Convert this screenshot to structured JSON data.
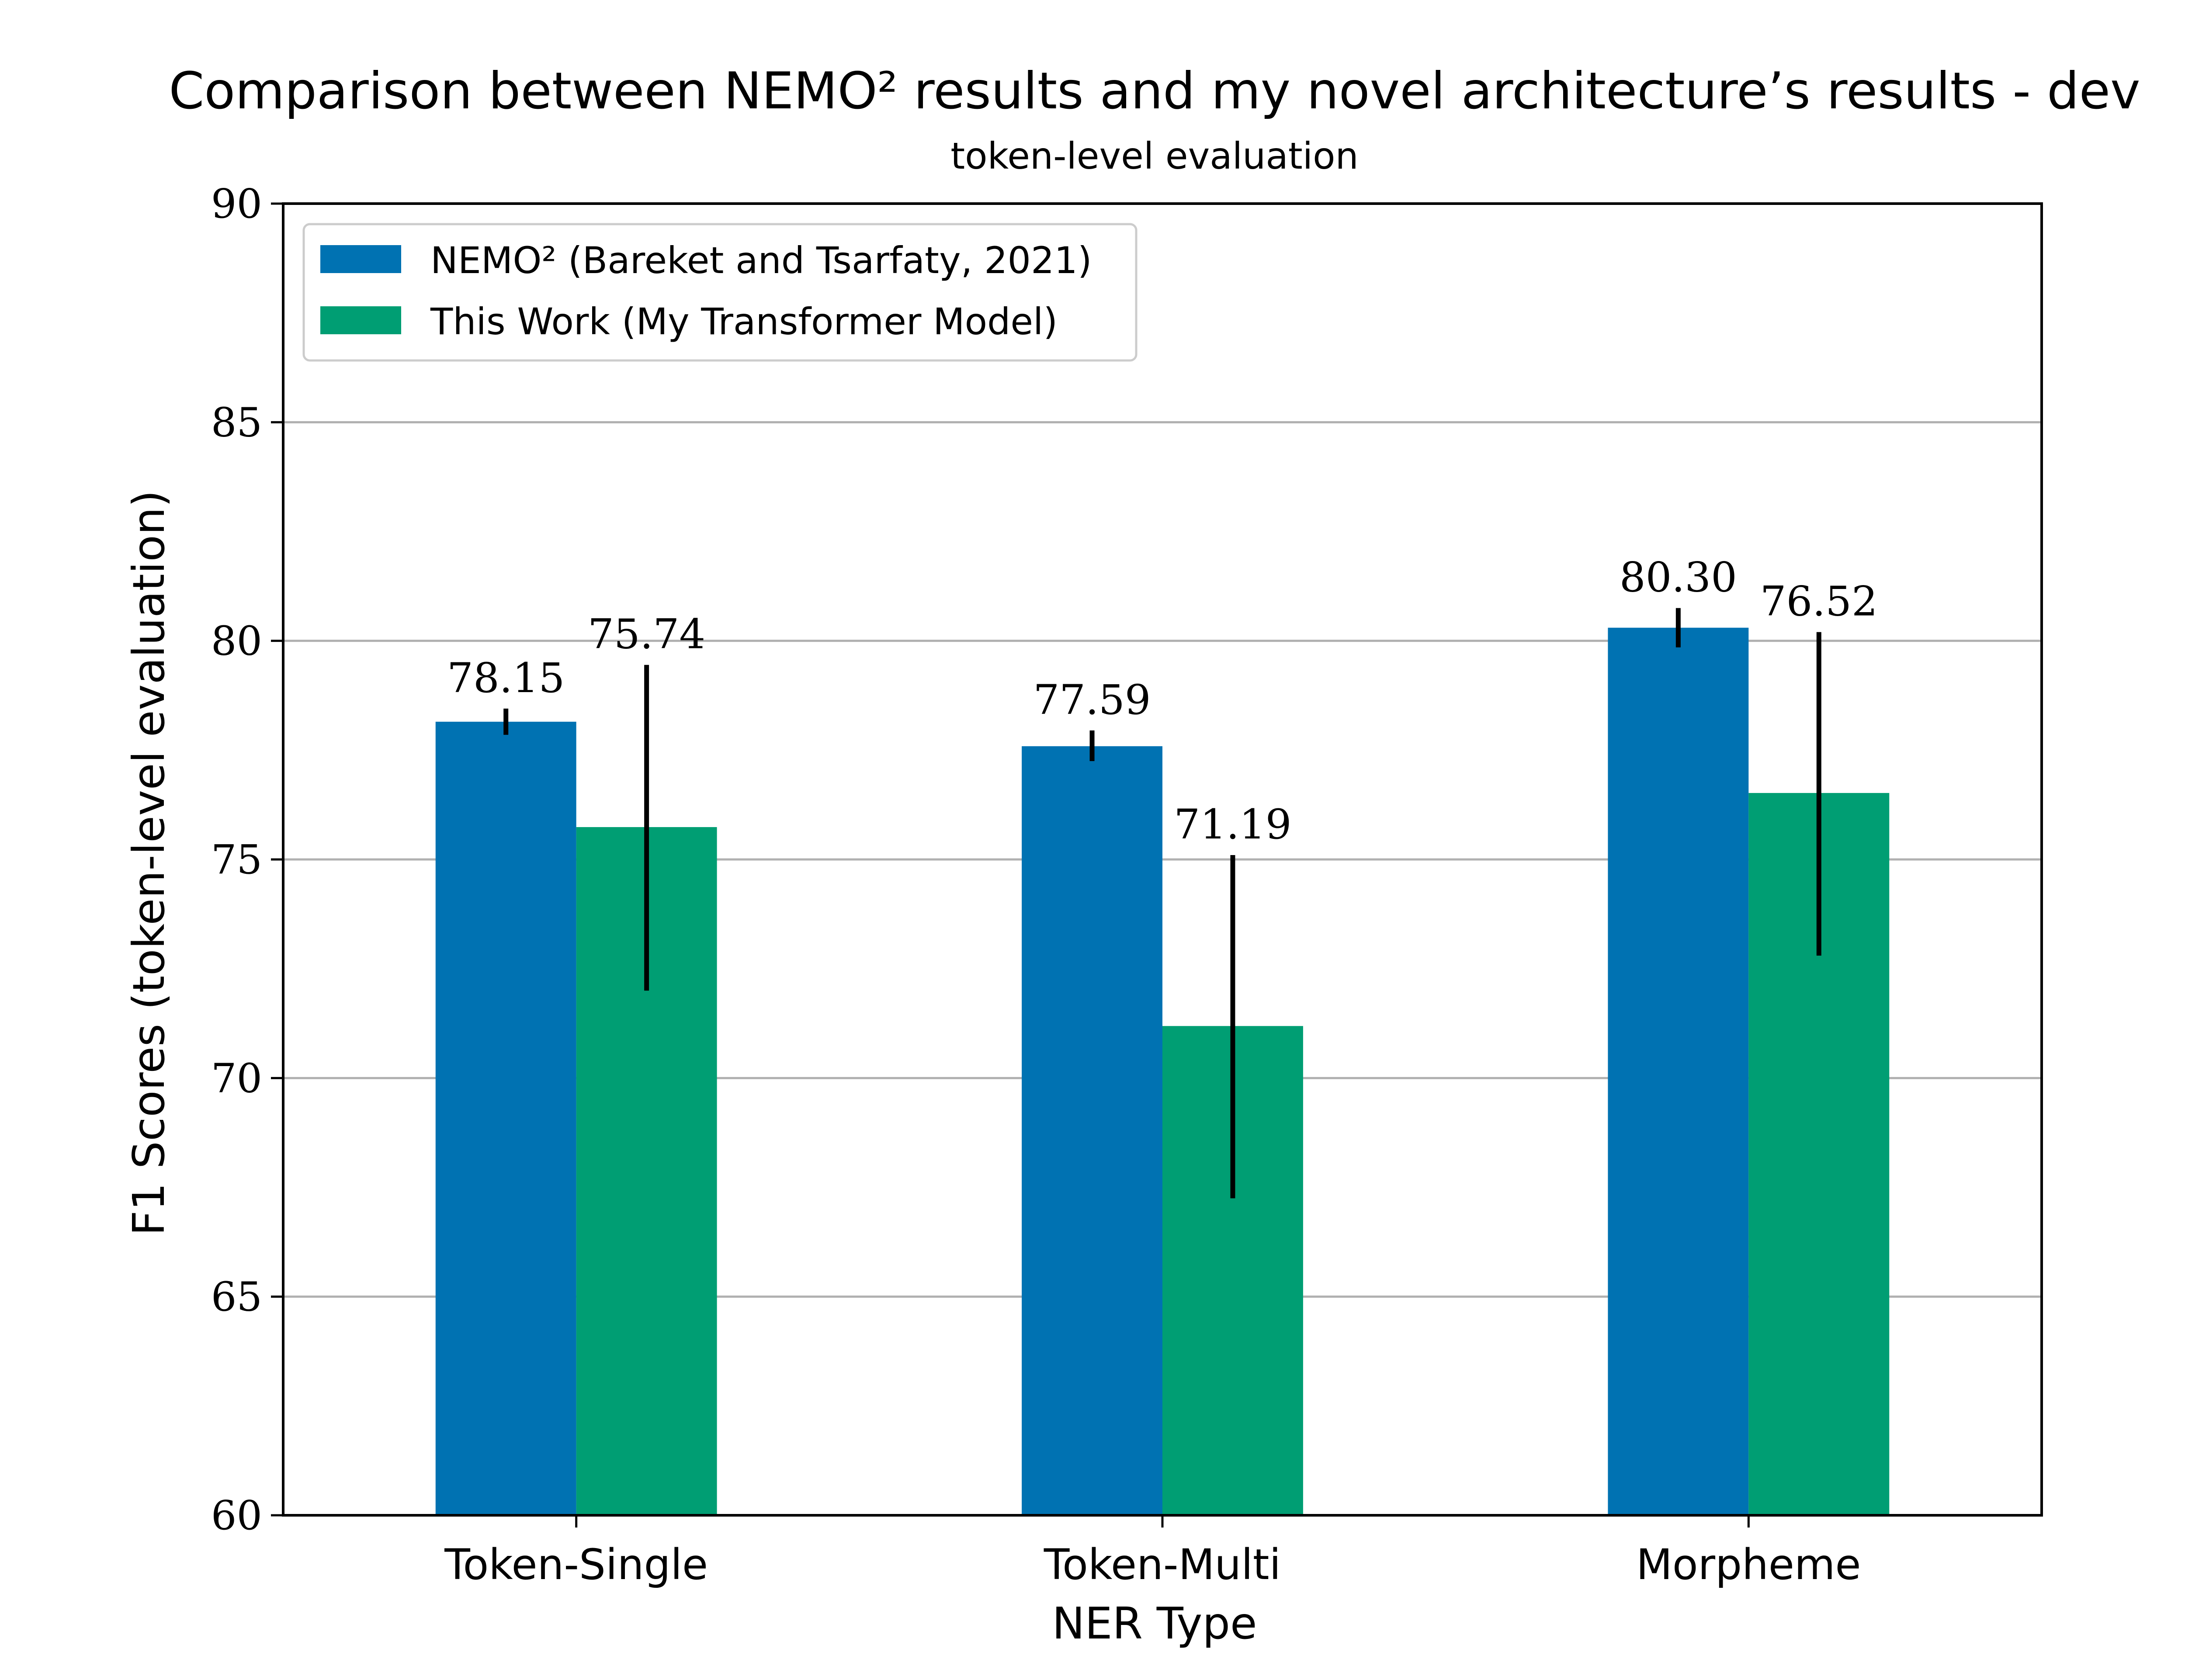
{
  "chart_data": {
    "type": "bar",
    "title": "Comparison between NEMO² results and my novel architecture’s results - dev",
    "subtitle": "token-level evaluation",
    "xlabel": "NER Type",
    "ylabel": "F1 Scores (token-level evaluation)",
    "categories": [
      "Token-Single",
      "Token-Multi",
      "Morpheme"
    ],
    "ylim": [
      60,
      90
    ],
    "yticks": [
      "60",
      "65",
      "70",
      "75",
      "80",
      "85",
      "90"
    ],
    "grid": true,
    "legend_position": "top-left",
    "series": [
      {
        "name": "NEMO² (Bareket and Tsarfaty, 2021)",
        "color": "#0072b2",
        "values": [
          78.15,
          77.59,
          80.3
        ],
        "labels": [
          "78.15",
          "77.59",
          "80.30"
        ],
        "error_low": [
          77.85,
          77.25,
          79.85
        ],
        "error_high": [
          78.45,
          77.95,
          80.75
        ]
      },
      {
        "name": "This Work (My Transformer Model)",
        "color": "#009e73",
        "values": [
          75.74,
          71.19,
          76.52
        ],
        "labels": [
          "75.74",
          "71.19",
          "76.52"
        ],
        "error_low": [
          72.0,
          67.25,
          72.8
        ],
        "error_high": [
          79.45,
          75.1,
          80.2
        ]
      }
    ]
  }
}
